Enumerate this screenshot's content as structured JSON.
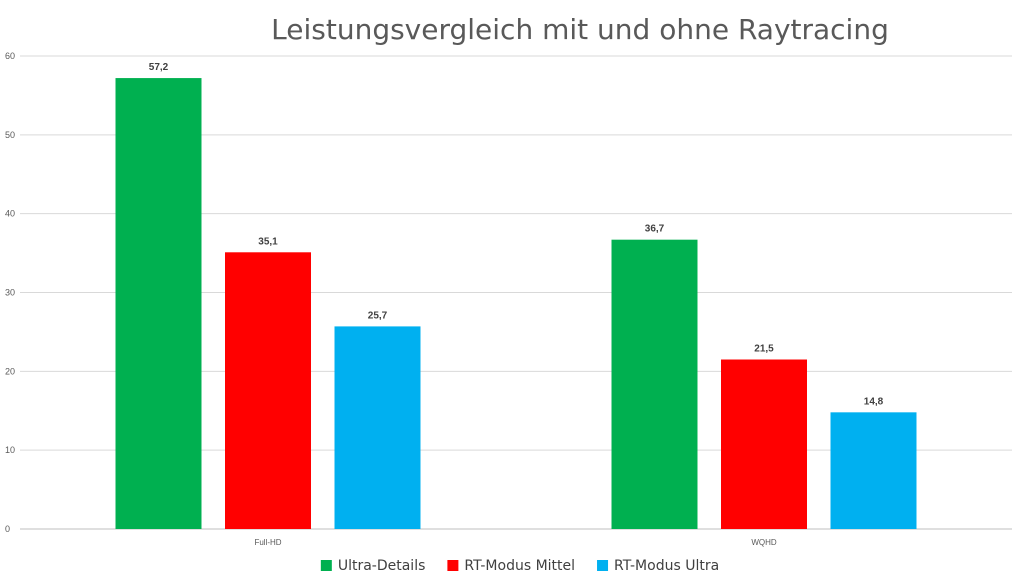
{
  "chart_data": {
    "type": "bar",
    "title": "Leistungsvergleich mit und ohne Raytracing",
    "xlabel": "",
    "ylabel": "",
    "categories": [
      "Full-HD",
      "WQHD"
    ],
    "series": [
      {
        "name": "Ultra-Details",
        "color": "#00b050",
        "values": [
          57.2,
          36.7
        ],
        "labels": [
          "57,2",
          "36,7"
        ]
      },
      {
        "name": "RT-Modus Mittel",
        "color": "#ff0000",
        "values": [
          35.1,
          21.5
        ],
        "labels": [
          "35,1",
          "21,5"
        ]
      },
      {
        "name": "RT-Modus Ultra",
        "color": "#00b0f0",
        "values": [
          25.7,
          14.8
        ],
        "labels": [
          "25,7",
          "14,8"
        ]
      }
    ],
    "ylim": [
      0,
      60
    ],
    "yticks": [
      0,
      10,
      20,
      30,
      40,
      50,
      60
    ],
    "grid": true,
    "legend_position": "bottom"
  }
}
